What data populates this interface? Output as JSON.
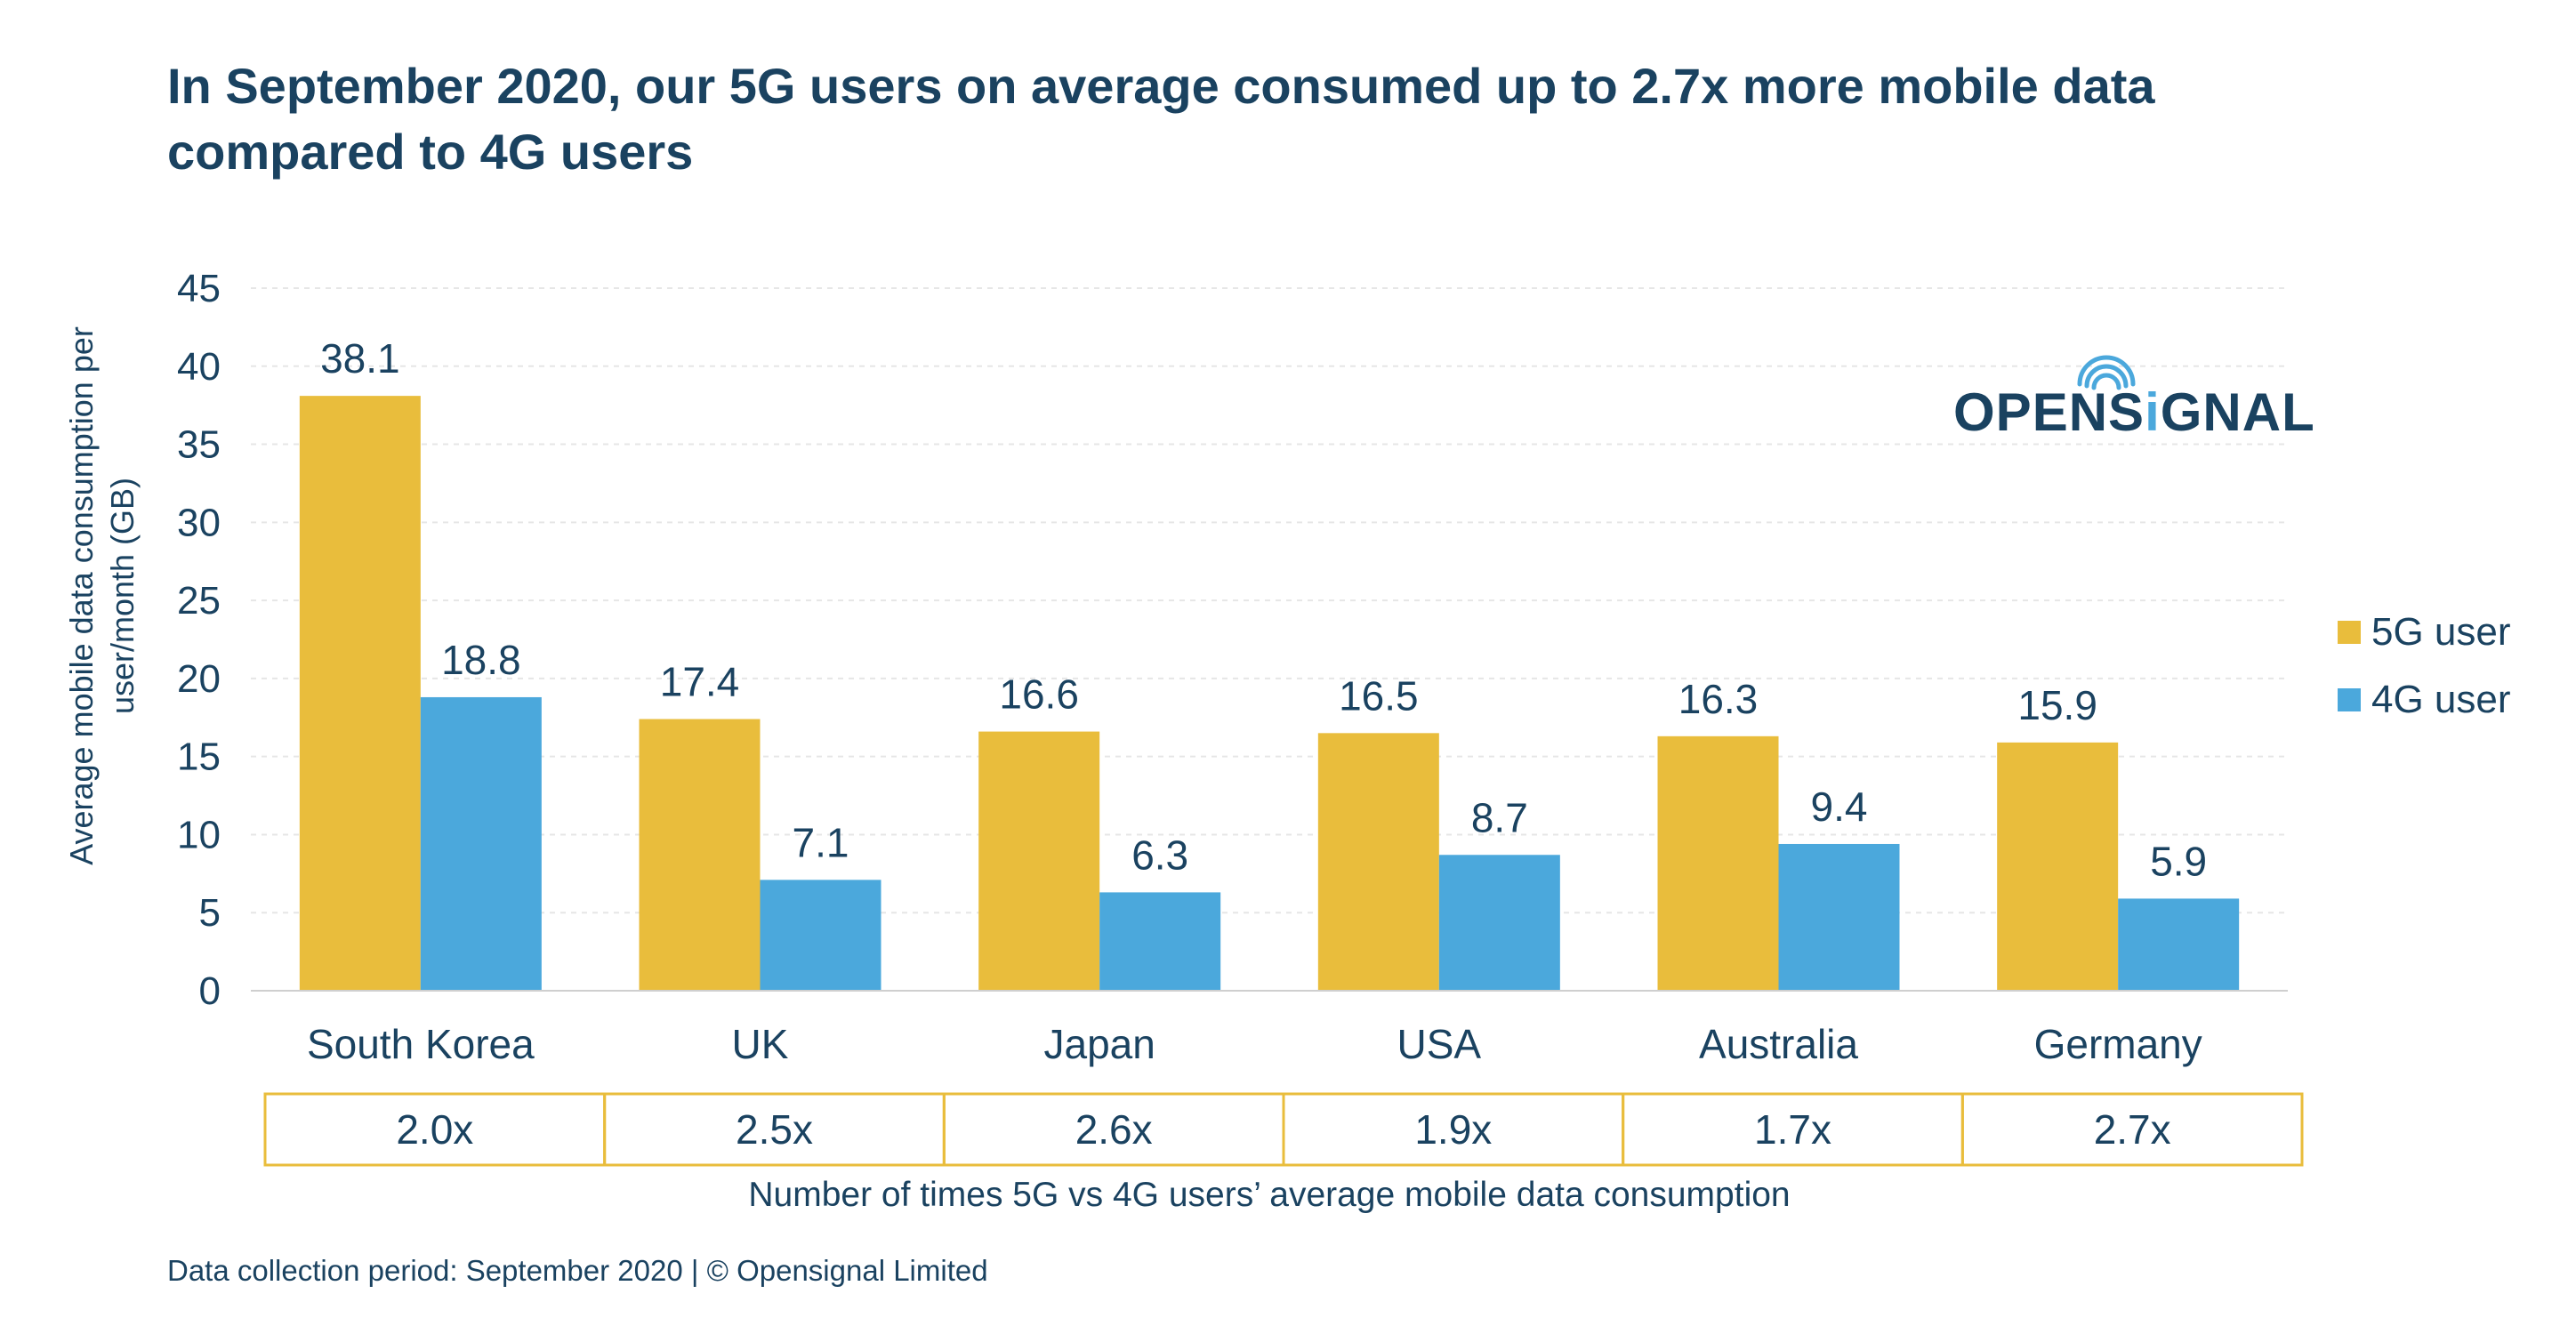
{
  "header": {
    "title_line1": "In September 2020, our 5G users on average consumed up to 2.7x more mobile data",
    "title_line2": "compared to 4G users"
  },
  "logo": {
    "text_left": "OPENS",
    "text_i": "i",
    "text_right": "GNAL"
  },
  "footer": {
    "source": "Data collection period: September 2020 | © Opensignal Limited"
  },
  "ratio_caption": "Number of times 5G vs 4G users’ average mobile data consumption",
  "colors": {
    "series_5g": "#E9BD3C",
    "series_4g": "#4BA8DC",
    "text": "#1a4260",
    "grid": "#e6e6e6",
    "ratio_border": "#E9BD3C"
  },
  "chart_data": {
    "type": "bar",
    "title": "In September 2020, our 5G users on average consumed up to 2.7x more mobile data compared to 4G users",
    "categories": [
      "South Korea",
      "UK",
      "Japan",
      "USA",
      "Australia",
      "Germany"
    ],
    "series": [
      {
        "name": "5G user",
        "values": [
          38.1,
          17.4,
          16.6,
          16.5,
          16.3,
          15.9
        ]
      },
      {
        "name": "4G user",
        "values": [
          18.8,
          7.1,
          6.3,
          8.7,
          9.4,
          5.9
        ]
      }
    ],
    "ratios": [
      "2.0x",
      "2.5x",
      "2.6x",
      "1.9x",
      "1.7x",
      "2.7x"
    ],
    "xlabel": "",
    "ylabel_line1": "Average mobile data consumption per",
    "ylabel_line2": "user/month (GB)",
    "ylim": [
      0,
      45
    ],
    "yticks": [
      0,
      5,
      10,
      15,
      20,
      25,
      30,
      35,
      40,
      45
    ],
    "grid": true,
    "legend_position": "right"
  }
}
